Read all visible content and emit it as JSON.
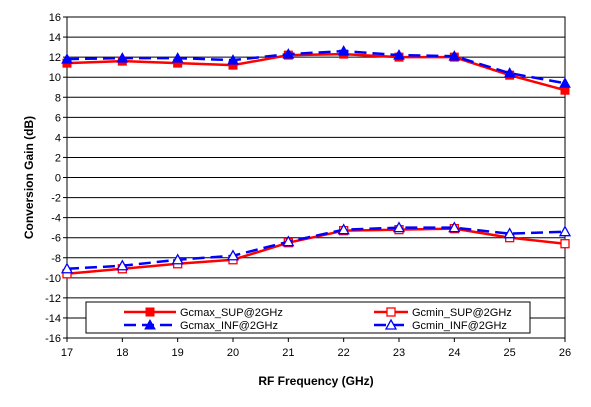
{
  "chart_data": {
    "type": "line",
    "xlabel": "RF Frequency (GHz)",
    "ylabel": "Conversion Gain (dB)",
    "xlim": [
      17,
      26
    ],
    "ylim": [
      -16,
      16
    ],
    "x_ticks": [
      "17",
      "18",
      "19",
      "20",
      "21",
      "22",
      "23",
      "24",
      "25",
      "26"
    ],
    "y_ticks": [
      "-16",
      "-14",
      "-12",
      "-10",
      "-8",
      "-6",
      "-4",
      "-2",
      "0",
      "2",
      "4",
      "6",
      "8",
      "10",
      "12",
      "14",
      "16"
    ],
    "grid": "horizontal",
    "legend_position": "bottom",
    "x": [
      17,
      18,
      19,
      20,
      21,
      22,
      23,
      24,
      25,
      26
    ],
    "series": [
      {
        "name": "Gcmax_SUP@2GHz",
        "color": "#ff0000",
        "dash": "solid",
        "marker": "filled-square",
        "values": [
          11.4,
          11.6,
          11.4,
          11.2,
          12.2,
          12.3,
          12.0,
          12.0,
          10.2,
          8.7
        ]
      },
      {
        "name": "Gcmin_SUP@2GHz",
        "color": "#ff0000",
        "dash": "solid",
        "marker": "open-square",
        "values": [
          -9.6,
          -9.1,
          -8.6,
          -8.2,
          -6.5,
          -5.3,
          -5.2,
          -5.1,
          -6.0,
          -6.6
        ]
      },
      {
        "name": "Gcmax_INF@2GHz",
        "color": "#0000ff",
        "dash": "dashed",
        "marker": "filled-triangle",
        "values": [
          11.8,
          11.9,
          11.9,
          11.7,
          12.3,
          12.6,
          12.2,
          12.1,
          10.4,
          9.4
        ]
      },
      {
        "name": "Gcmin_INF@2GHz",
        "color": "#0000ff",
        "dash": "dashed",
        "marker": "open-triangle",
        "values": [
          -9.1,
          -8.8,
          -8.2,
          -7.8,
          -6.4,
          -5.2,
          -5.0,
          -5.0,
          -5.6,
          -5.4
        ]
      }
    ]
  }
}
